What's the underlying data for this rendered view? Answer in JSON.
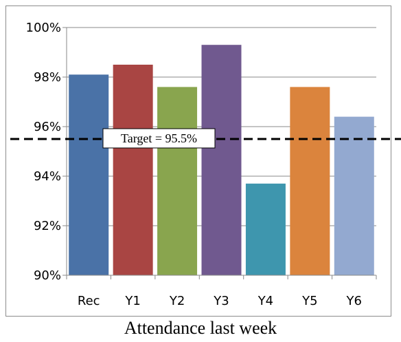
{
  "chart_data": {
    "type": "bar",
    "categories": [
      "Rec",
      "Y1",
      "Y2",
      "Y3",
      "Y4",
      "Y5",
      "Y6"
    ],
    "values": [
      98.1,
      98.5,
      97.6,
      99.3,
      93.7,
      97.6,
      96.4
    ],
    "colors": [
      "#4a72a7",
      "#a94543",
      "#89a54e",
      "#70598f",
      "#3e96ae",
      "#db843d",
      "#93a9d0"
    ],
    "ylim": [
      90,
      100
    ],
    "yticks": [
      90,
      92,
      94,
      96,
      98,
      100
    ],
    "ytick_labels": [
      "90%",
      "92%",
      "94%",
      "96%",
      "98%",
      "100%"
    ],
    "grid": true,
    "target": {
      "value": 95.5,
      "label": "Target = 95.5%"
    }
  },
  "caption": "Attendance last week"
}
